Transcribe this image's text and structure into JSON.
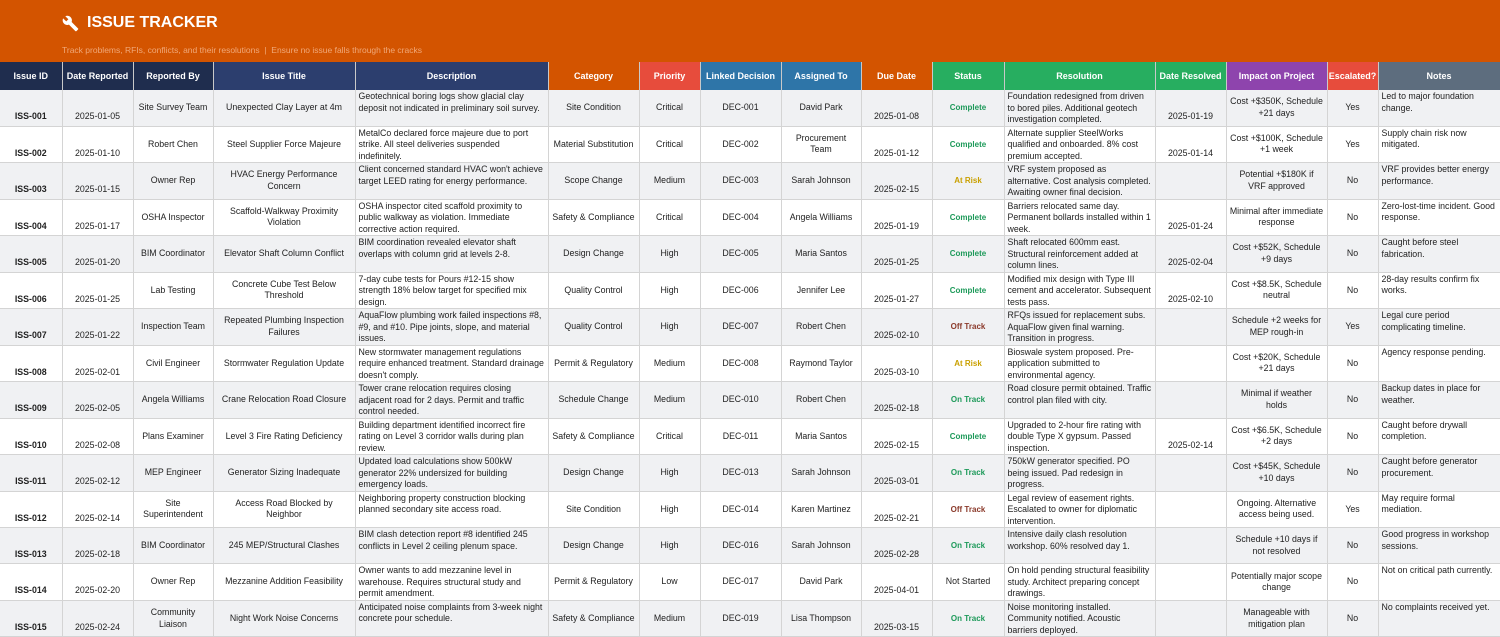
{
  "header": {
    "title": "ISSUE TRACKER",
    "subtitle": "Track problems, RFIs, conflicts, and their resolutions  |  Ensure no issue falls through the cracks",
    "icon": "wrench-icon"
  },
  "columns": [
    {
      "label": "Issue ID",
      "color": "#1f2d4e"
    },
    {
      "label": "Date Reported",
      "color": "#1f2d4e"
    },
    {
      "label": "Reported By",
      "color": "#1f2d4e"
    },
    {
      "label": "Issue Title",
      "color": "#2c3e6e"
    },
    {
      "label": "Description",
      "color": "#2c3e6e"
    },
    {
      "label": "Category",
      "color": "#d35400"
    },
    {
      "label": "Priority",
      "color": "#e74c3c"
    },
    {
      "label": "Linked Decision",
      "color": "#2e75a8"
    },
    {
      "label": "Assigned To",
      "color": "#2e75a8"
    },
    {
      "label": "Due Date",
      "color": "#d35400"
    },
    {
      "label": "Status",
      "color": "#27ae60"
    },
    {
      "label": "Resolution",
      "color": "#27ae60"
    },
    {
      "label": "Date Resolved",
      "color": "#27ae60"
    },
    {
      "label": "Impact on Project",
      "color": "#8e44ad"
    },
    {
      "label": "Escalated?",
      "color": "#e74c3c"
    },
    {
      "label": "Notes",
      "color": "#5d6d7e"
    }
  ],
  "status_colors": {
    "Complete": "#1e9a5a",
    "At Risk": "#c9a000",
    "Off Track": "#8b3a2b",
    "On Track": "#1e9a5a",
    "Not Started": "#222222"
  },
  "rows": [
    [
      "ISS-001",
      "2025-01-05",
      "Site Survey Team",
      "Unexpected Clay Layer at 4m",
      "Geotechnical boring logs show glacial clay deposit not indicated in preliminary soil survey.",
      "Site Condition",
      "Critical",
      "DEC-001",
      "David Park",
      "2025-01-08",
      "Complete",
      "Foundation redesigned from driven to bored piles. Additional geotech investigation completed.",
      "2025-01-19",
      "Cost +$350K, Schedule +21 days",
      "Yes",
      "Led to major foundation change."
    ],
    [
      "ISS-002",
      "2025-01-10",
      "Robert Chen",
      "Steel Supplier Force Majeure",
      "MetalCo declared force majeure due to port strike. All steel deliveries suspended indefinitely.",
      "Material Substitution",
      "Critical",
      "DEC-002",
      "Procurement Team",
      "2025-01-12",
      "Complete",
      "Alternate supplier SteelWorks qualified and onboarded. 8% cost premium accepted.",
      "2025-01-14",
      "Cost +$100K, Schedule +1 week",
      "Yes",
      "Supply chain risk now mitigated."
    ],
    [
      "ISS-003",
      "2025-01-15",
      "Owner Rep",
      "HVAC Energy Performance Concern",
      "Client concerned standard HVAC won't achieve target LEED rating for energy performance.",
      "Scope Change",
      "Medium",
      "DEC-003",
      "Sarah Johnson",
      "2025-02-15",
      "At Risk",
      "VRF system proposed as alternative. Cost analysis completed. Awaiting owner final decision.",
      "",
      "Potential +$180K if VRF approved",
      "No",
      "VRF provides better energy performance."
    ],
    [
      "ISS-004",
      "2025-01-17",
      "OSHA Inspector",
      "Scaffold-Walkway Proximity Violation",
      "OSHA inspector cited scaffold proximity to public walkway as violation. Immediate corrective action required.",
      "Safety & Compliance",
      "Critical",
      "DEC-004",
      "Angela Williams",
      "2025-01-19",
      "Complete",
      "Barriers relocated same day. Permanent bollards installed within 1 week.",
      "2025-01-24",
      "Minimal after immediate response",
      "No",
      "Zero-lost-time incident. Good response."
    ],
    [
      "ISS-005",
      "2025-01-20",
      "BIM Coordinator",
      "Elevator Shaft Column Conflict",
      "BIM coordination revealed elevator shaft overlaps with column grid at levels 2-8.",
      "Design Change",
      "High",
      "DEC-005",
      "Maria Santos",
      "2025-01-25",
      "Complete",
      "Shaft relocated 600mm east. Structural reinforcement added at column lines.",
      "2025-02-04",
      "Cost +$52K, Schedule +9 days",
      "No",
      "Caught before steel fabrication."
    ],
    [
      "ISS-006",
      "2025-01-25",
      "Lab Testing",
      "Concrete Cube Test Below Threshold",
      "7-day cube tests for Pours #12-15 show strength 18% below target for specified mix design.",
      "Quality Control",
      "High",
      "DEC-006",
      "Jennifer Lee",
      "2025-01-27",
      "Complete",
      "Modified mix design with Type III cement and accelerator. Subsequent tests pass.",
      "2025-02-10",
      "Cost +$8.5K, Schedule neutral",
      "No",
      "28-day results confirm fix works."
    ],
    [
      "ISS-007",
      "2025-01-22",
      "Inspection Team",
      "Repeated Plumbing Inspection Failures",
      "AquaFlow plumbing work failed inspections #8, #9, and #10. Pipe joints, slope, and material issues.",
      "Quality Control",
      "High",
      "DEC-007",
      "Robert Chen",
      "2025-02-10",
      "Off Track",
      "RFQs issued for replacement subs. AquaFlow given final warning. Transition in progress.",
      "",
      "Schedule +2 weeks for MEP rough-in",
      "Yes",
      "Legal cure period complicating timeline."
    ],
    [
      "ISS-008",
      "2025-02-01",
      "Civil Engineer",
      "Stormwater Regulation Update",
      "New stormwater management regulations require enhanced treatment. Standard drainage doesn't comply.",
      "Permit & Regulatory",
      "Medium",
      "DEC-008",
      "Raymond Taylor",
      "2025-03-10",
      "At Risk",
      "Bioswale system proposed. Pre-application submitted to environmental agency.",
      "",
      "Cost +$20K, Schedule +21 days",
      "No",
      "Agency response pending."
    ],
    [
      "ISS-009",
      "2025-02-05",
      "Angela Williams",
      "Crane Relocation Road Closure",
      "Tower crane relocation requires closing adjacent road for 2 days. Permit and traffic control needed.",
      "Schedule Change",
      "Medium",
      "DEC-010",
      "Robert Chen",
      "2025-02-18",
      "On Track",
      "Road closure permit obtained. Traffic control plan filed with city.",
      "",
      "Minimal if weather holds",
      "No",
      "Backup dates in place for weather."
    ],
    [
      "ISS-010",
      "2025-02-08",
      "Plans Examiner",
      "Level 3 Fire Rating Deficiency",
      "Building department identified incorrect fire rating on Level 3 corridor walls during plan review.",
      "Safety & Compliance",
      "Critical",
      "DEC-011",
      "Maria Santos",
      "2025-02-15",
      "Complete",
      "Upgraded to 2-hour fire rating with double Type X gypsum. Passed inspection.",
      "2025-02-14",
      "Cost +$6.5K, Schedule +2 days",
      "No",
      "Caught before drywall completion."
    ],
    [
      "ISS-011",
      "2025-02-12",
      "MEP Engineer",
      "Generator Sizing Inadequate",
      "Updated load calculations show 500kW generator 22% undersized for building emergency loads.",
      "Design Change",
      "High",
      "DEC-013",
      "Sarah Johnson",
      "2025-03-01",
      "On Track",
      "750kW generator specified. PO being issued. Pad redesign in progress.",
      "",
      "Cost +$45K, Schedule +10 days",
      "No",
      "Caught before generator procurement."
    ],
    [
      "ISS-012",
      "2025-02-14",
      "Site Superintendent",
      "Access Road Blocked by Neighbor",
      "Neighboring property construction blocking planned secondary site access road.",
      "Site Condition",
      "High",
      "DEC-014",
      "Karen Martinez",
      "2025-02-21",
      "Off Track",
      "Legal review of easement rights. Escalated to owner for diplomatic intervention.",
      "",
      "Ongoing. Alternative access being used.",
      "Yes",
      "May require formal mediation."
    ],
    [
      "ISS-013",
      "2025-02-18",
      "BIM Coordinator",
      "245 MEP/Structural Clashes",
      "BIM clash detection report #8 identified 245 conflicts in Level 2 ceiling plenum space.",
      "Design Change",
      "High",
      "DEC-016",
      "Sarah Johnson",
      "2025-02-28",
      "On Track",
      "Intensive daily clash resolution workshop. 60% resolved day 1.",
      "",
      "Schedule +10 days if not resolved",
      "No",
      "Good progress in workshop sessions."
    ],
    [
      "ISS-014",
      "2025-02-20",
      "Owner Rep",
      "Mezzanine Addition Feasibility",
      "Owner wants to add mezzanine level in warehouse. Requires structural study and permit amendment.",
      "Permit & Regulatory",
      "Low",
      "DEC-017",
      "David Park",
      "2025-04-01",
      "Not Started",
      "On hold pending structural feasibility study. Architect preparing concept drawings.",
      "",
      "Potentially major scope change",
      "No",
      "Not on critical path currently."
    ],
    [
      "ISS-015",
      "2025-02-24",
      "Community Liaison",
      "Night Work Noise Concerns",
      "Anticipated noise complaints from 3-week night concrete pour schedule.",
      "Safety & Compliance",
      "Medium",
      "DEC-019",
      "Lisa Thompson",
      "2025-03-15",
      "On Track",
      "Noise monitoring installed. Community notified. Acoustic barriers deployed.",
      "",
      "Manageable with mitigation plan",
      "No",
      "No complaints received yet."
    ]
  ]
}
